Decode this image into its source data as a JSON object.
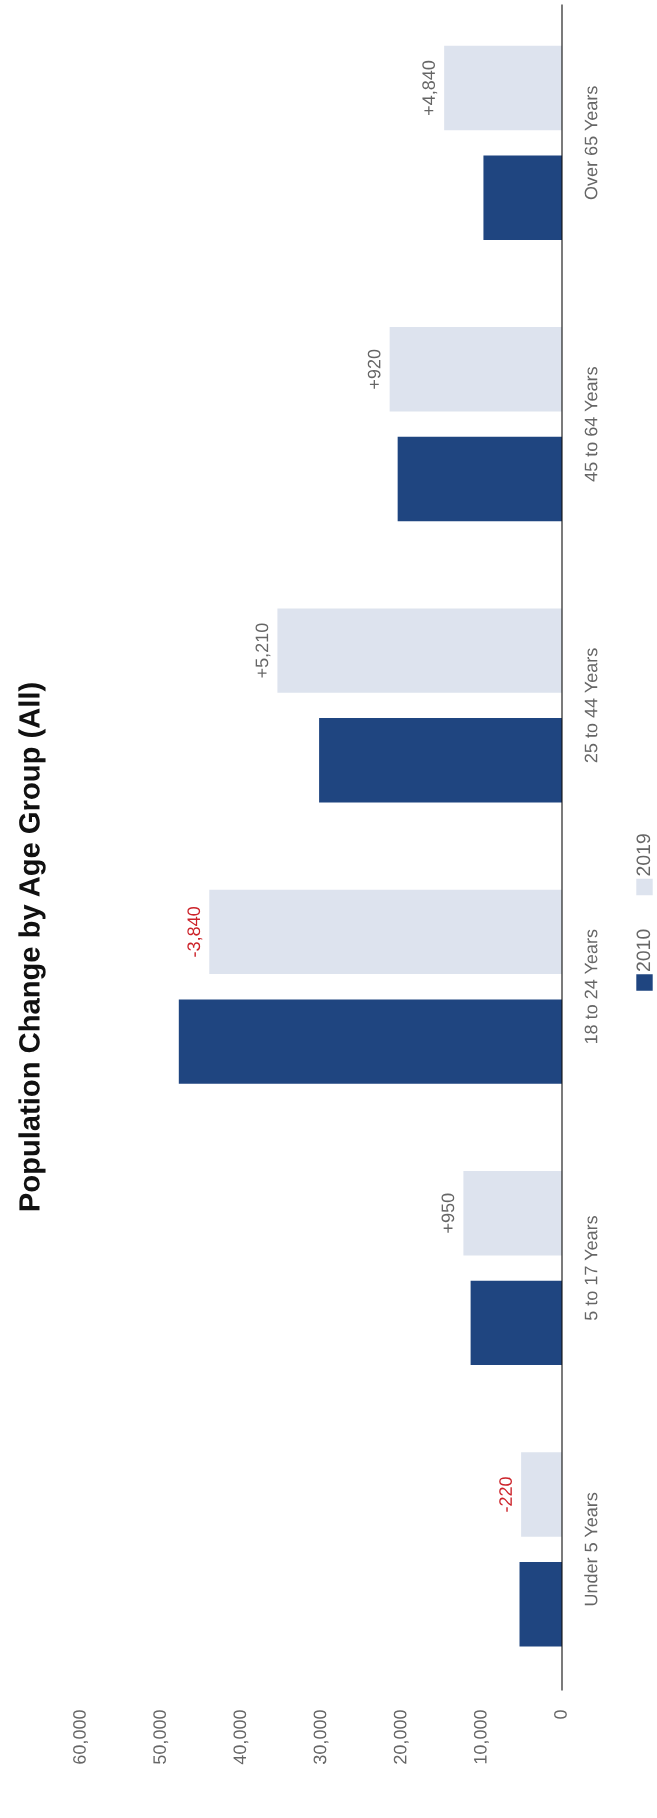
{
  "chart_data": {
    "type": "bar",
    "orientation": "horizontal",
    "title": "Population Change by Age Group (All)",
    "categories": [
      "Over 65 Years",
      "45 to 64 Years",
      "25 to 44 Years",
      "18 to 24 Years",
      "5 to 17 Years",
      "Under 5 Years"
    ],
    "series": [
      {
        "name": "2010",
        "color": "#1f4580",
        "values": [
          9800,
          20500,
          30300,
          47800,
          11400,
          5300
        ]
      },
      {
        "name": "2019",
        "color": "#dde3ee",
        "values": [
          14700,
          21500,
          35500,
          44000,
          12300,
          5100
        ]
      }
    ],
    "xlim": [
      60000,
      0
    ],
    "xticks": [
      {
        "value": 60000,
        "label": "60,000"
      },
      {
        "value": 50000,
        "label": "50,000"
      },
      {
        "value": 40000,
        "label": "40,000"
      },
      {
        "value": 30000,
        "label": "30,000"
      },
      {
        "value": 20000,
        "label": "20,000"
      },
      {
        "value": 10000,
        "label": "10,000"
      },
      0
    ],
    "grid": false,
    "legend": "right",
    "annotations": [
      "+4,840",
      "+920",
      "+5,210",
      "-3,840",
      "+950",
      "-220"
    ]
  }
}
